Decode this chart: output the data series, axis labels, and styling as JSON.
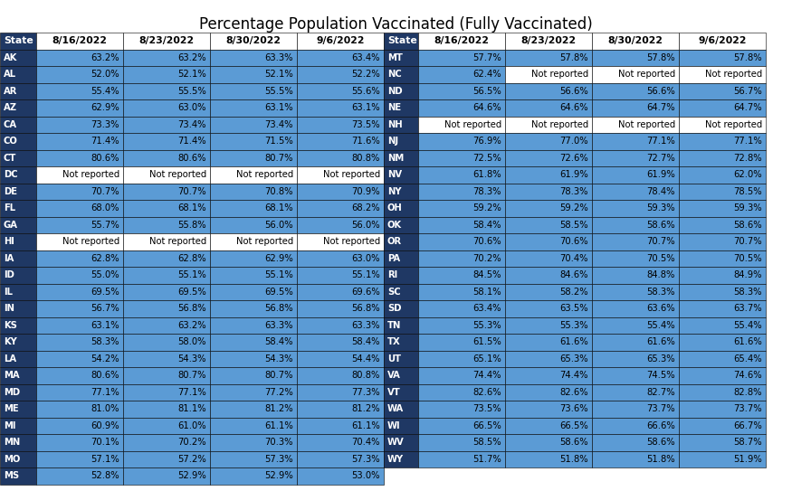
{
  "title": "Percentage Population Vaccinated (Fully Vaccinated)",
  "headers": [
    "State",
    "8/16/2022",
    "8/23/2022",
    "8/30/2022",
    "9/6/2022"
  ],
  "left_table": [
    [
      "AK",
      "63.2%",
      "63.2%",
      "63.3%",
      "63.4%"
    ],
    [
      "AL",
      "52.0%",
      "52.1%",
      "52.1%",
      "52.2%"
    ],
    [
      "AR",
      "55.4%",
      "55.5%",
      "55.5%",
      "55.6%"
    ],
    [
      "AZ",
      "62.9%",
      "63.0%",
      "63.1%",
      "63.1%"
    ],
    [
      "CA",
      "73.3%",
      "73.4%",
      "73.4%",
      "73.5%"
    ],
    [
      "CO",
      "71.4%",
      "71.4%",
      "71.5%",
      "71.6%"
    ],
    [
      "CT",
      "80.6%",
      "80.6%",
      "80.7%",
      "80.8%"
    ],
    [
      "DC",
      "Not reported",
      "Not reported",
      "Not reported",
      "Not reported"
    ],
    [
      "DE",
      "70.7%",
      "70.7%",
      "70.8%",
      "70.9%"
    ],
    [
      "FL",
      "68.0%",
      "68.1%",
      "68.1%",
      "68.2%"
    ],
    [
      "GA",
      "55.7%",
      "55.8%",
      "56.0%",
      "56.0%"
    ],
    [
      "HI",
      "Not reported",
      "Not reported",
      "Not reported",
      "Not reported"
    ],
    [
      "IA",
      "62.8%",
      "62.8%",
      "62.9%",
      "63.0%"
    ],
    [
      "ID",
      "55.0%",
      "55.1%",
      "55.1%",
      "55.1%"
    ],
    [
      "IL",
      "69.5%",
      "69.5%",
      "69.5%",
      "69.6%"
    ],
    [
      "IN",
      "56.7%",
      "56.8%",
      "56.8%",
      "56.8%"
    ],
    [
      "KS",
      "63.1%",
      "63.2%",
      "63.3%",
      "63.3%"
    ],
    [
      "KY",
      "58.3%",
      "58.0%",
      "58.4%",
      "58.4%"
    ],
    [
      "LA",
      "54.2%",
      "54.3%",
      "54.3%",
      "54.4%"
    ],
    [
      "MA",
      "80.6%",
      "80.7%",
      "80.7%",
      "80.8%"
    ],
    [
      "MD",
      "77.1%",
      "77.1%",
      "77.2%",
      "77.3%"
    ],
    [
      "ME",
      "81.0%",
      "81.1%",
      "81.2%",
      "81.2%"
    ],
    [
      "MI",
      "60.9%",
      "61.0%",
      "61.1%",
      "61.1%"
    ],
    [
      "MN",
      "70.1%",
      "70.2%",
      "70.3%",
      "70.4%"
    ],
    [
      "MO",
      "57.1%",
      "57.2%",
      "57.3%",
      "57.3%"
    ],
    [
      "MS",
      "52.8%",
      "52.9%",
      "52.9%",
      "53.0%"
    ]
  ],
  "right_table": [
    [
      "MT",
      "57.7%",
      "57.8%",
      "57.8%",
      "57.8%"
    ],
    [
      "NC",
      "62.4%",
      "Not reported",
      "Not reported",
      "Not reported"
    ],
    [
      "ND",
      "56.5%",
      "56.6%",
      "56.6%",
      "56.7%"
    ],
    [
      "NE",
      "64.6%",
      "64.6%",
      "64.7%",
      "64.7%"
    ],
    [
      "NH",
      "Not reported",
      "Not reported",
      "Not reported",
      "Not reported"
    ],
    [
      "NJ",
      "76.9%",
      "77.0%",
      "77.1%",
      "77.1%"
    ],
    [
      "NM",
      "72.5%",
      "72.6%",
      "72.7%",
      "72.8%"
    ],
    [
      "NV",
      "61.8%",
      "61.9%",
      "61.9%",
      "62.0%"
    ],
    [
      "NY",
      "78.3%",
      "78.3%",
      "78.4%",
      "78.5%"
    ],
    [
      "OH",
      "59.2%",
      "59.2%",
      "59.3%",
      "59.3%"
    ],
    [
      "OK",
      "58.4%",
      "58.5%",
      "58.6%",
      "58.6%"
    ],
    [
      "OR",
      "70.6%",
      "70.6%",
      "70.7%",
      "70.7%"
    ],
    [
      "PA",
      "70.2%",
      "70.4%",
      "70.5%",
      "70.5%"
    ],
    [
      "RI",
      "84.5%",
      "84.6%",
      "84.8%",
      "84.9%"
    ],
    [
      "SC",
      "58.1%",
      "58.2%",
      "58.3%",
      "58.3%"
    ],
    [
      "SD",
      "63.4%",
      "63.5%",
      "63.6%",
      "63.7%"
    ],
    [
      "TN",
      "55.3%",
      "55.3%",
      "55.4%",
      "55.4%"
    ],
    [
      "TX",
      "61.5%",
      "61.6%",
      "61.6%",
      "61.6%"
    ],
    [
      "UT",
      "65.1%",
      "65.3%",
      "65.3%",
      "65.4%"
    ],
    [
      "VA",
      "74.4%",
      "74.4%",
      "74.5%",
      "74.6%"
    ],
    [
      "VT",
      "82.6%",
      "82.6%",
      "82.7%",
      "82.8%"
    ],
    [
      "WA",
      "73.5%",
      "73.6%",
      "73.7%",
      "73.7%"
    ],
    [
      "WI",
      "66.5%",
      "66.5%",
      "66.6%",
      "66.7%"
    ],
    [
      "WV",
      "58.5%",
      "58.6%",
      "58.6%",
      "58.7%"
    ],
    [
      "WY",
      "51.7%",
      "51.8%",
      "51.8%",
      "51.9%"
    ]
  ],
  "header_dark_bg": "#1f3864",
  "header_dark_fg": "#ffffff",
  "data_bg": "#5b9bd5",
  "data_fg": "#000000",
  "not_reported_bg": "#ffffff",
  "not_reported_fg": "#000000",
  "white_header_bg": "#ffffff",
  "white_header_fg": "#000000",
  "title_fontsize": 12,
  "cell_fontsize": 7.2,
  "header_fontsize": 7.8,
  "fig_width": 8.75,
  "fig_height": 5.43,
  "dpi": 100
}
